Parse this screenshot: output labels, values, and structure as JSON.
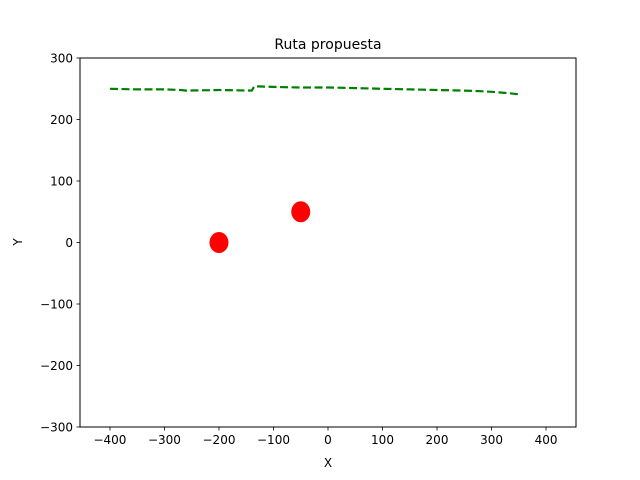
{
  "chart_data": {
    "type": "line",
    "title": "Ruta propuesta",
    "xlabel": "X",
    "ylabel": "Y",
    "xlim": [
      -455,
      455
    ],
    "ylim": [
      -300,
      300
    ],
    "xticks": [
      -400,
      -300,
      -200,
      -100,
      0,
      100,
      200,
      300,
      400
    ],
    "yticks": [
      -300,
      -200,
      -100,
      0,
      100,
      200,
      300
    ],
    "xtick_labels": [
      "−400",
      "−300",
      "−200",
      "−100",
      "0",
      "100",
      "200",
      "300",
      "400"
    ],
    "ytick_labels": [
      "−300",
      "−200",
      "−100",
      "0",
      "100",
      "200",
      "300"
    ],
    "grid": false,
    "series": [
      {
        "style": "dashed",
        "color": "#008000",
        "x": [
          -400,
          -350,
          -300,
          -270,
          -260,
          -200,
          -140,
          -135,
          -100,
          -50,
          0,
          50,
          100,
          150,
          200,
          250,
          280,
          300,
          330,
          350
        ],
        "y": [
          250,
          249,
          249,
          248,
          247,
          248,
          247,
          254,
          253,
          252,
          252,
          251,
          250,
          249,
          248,
          247,
          246,
          245,
          243,
          241
        ]
      }
    ],
    "points": [
      {
        "x": -200,
        "y": 0,
        "color": "#ff0000"
      },
      {
        "x": -50,
        "y": 50,
        "color": "#ff0000"
      }
    ]
  }
}
